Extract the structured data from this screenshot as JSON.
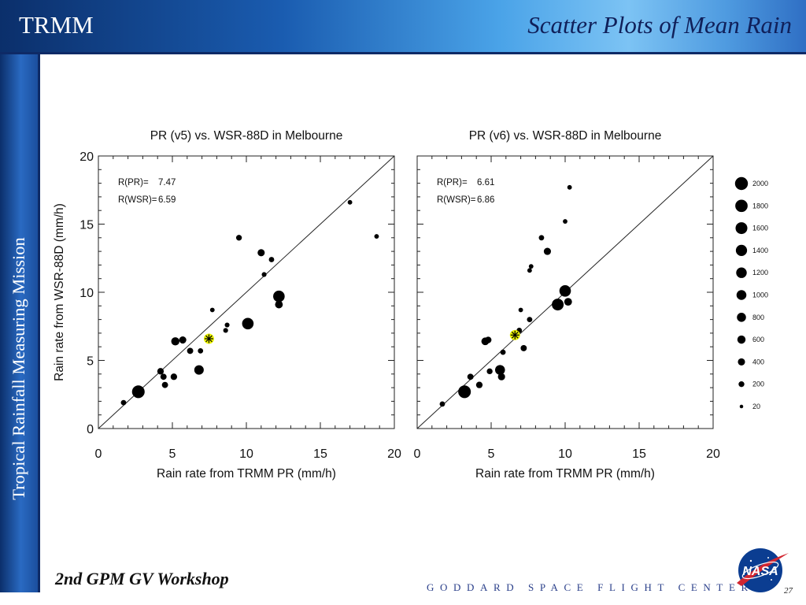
{
  "slide": {
    "brand": "TRMM",
    "title": "Scatter Plots of Mean Rain",
    "sidebar": "Tropical Rainfall Measuring Mission",
    "footer_left": "2nd GPM GV Workshop",
    "footer_center": "GODDARD SPACE FLIGHT CENTER",
    "page_number": "27",
    "logo_text": "NASA"
  },
  "chart_data": [
    {
      "type": "scatter",
      "title": "PR (v5) vs. WSR-88D in Melbourne",
      "xlabel": "Rain rate from TRMM PR (mm/h)",
      "ylabel": "Rain rate from WSR-88D (mm/h)",
      "xlim": [
        0,
        20
      ],
      "ylim": [
        0,
        20
      ],
      "xticks": [
        "0",
        "5",
        "10",
        "15",
        "20"
      ],
      "yticks": [
        "0",
        "5",
        "10",
        "15",
        "20"
      ],
      "diagonal": true,
      "annotations": [
        {
          "label": "R(PR)=",
          "value": "7.47"
        },
        {
          "label": "R(WSR)=",
          "value": "6.59"
        }
      ],
      "mean_marker": {
        "x": 7.47,
        "y": 6.59,
        "color": "#e8f000"
      },
      "points": [
        {
          "x": 1.7,
          "y": 1.9,
          "n": 150
        },
        {
          "x": 2.7,
          "y": 2.7,
          "n": 1900
        },
        {
          "x": 4.2,
          "y": 4.2,
          "n": 300
        },
        {
          "x": 4.4,
          "y": 3.8,
          "n": 250
        },
        {
          "x": 4.5,
          "y": 3.2,
          "n": 250
        },
        {
          "x": 5.1,
          "y": 3.8,
          "n": 300
        },
        {
          "x": 5.2,
          "y": 6.4,
          "n": 600
        },
        {
          "x": 5.7,
          "y": 6.5,
          "n": 400
        },
        {
          "x": 6.2,
          "y": 5.7,
          "n": 250
        },
        {
          "x": 6.8,
          "y": 4.3,
          "n": 900
        },
        {
          "x": 6.9,
          "y": 5.7,
          "n": 150
        },
        {
          "x": 7.7,
          "y": 8.7,
          "n": 80
        },
        {
          "x": 8.6,
          "y": 7.2,
          "n": 100
        },
        {
          "x": 8.7,
          "y": 7.6,
          "n": 100
        },
        {
          "x": 9.5,
          "y": 14.0,
          "n": 200
        },
        {
          "x": 10.1,
          "y": 7.7,
          "n": 1500
        },
        {
          "x": 11.0,
          "y": 12.9,
          "n": 400
        },
        {
          "x": 11.2,
          "y": 11.3,
          "n": 100
        },
        {
          "x": 11.7,
          "y": 12.4,
          "n": 150
        },
        {
          "x": 12.2,
          "y": 9.7,
          "n": 1500
        },
        {
          "x": 12.2,
          "y": 9.1,
          "n": 500
        },
        {
          "x": 17.0,
          "y": 16.6,
          "n": 80
        },
        {
          "x": 18.8,
          "y": 14.1,
          "n": 80
        }
      ]
    },
    {
      "type": "scatter",
      "title": "PR (v6) vs. WSR-88D in Melbourne",
      "xlabel": "Rain rate from TRMM PR (mm/h)",
      "ylabel": "",
      "xlim": [
        0,
        20
      ],
      "ylim": [
        0,
        20
      ],
      "xticks": [
        "0",
        "5",
        "10",
        "15",
        "20"
      ],
      "yticks": [],
      "diagonal": true,
      "annotations": [
        {
          "label": "R(PR)=",
          "value": "6.61"
        },
        {
          "label": "R(WSR)=",
          "value": "6.86"
        }
      ],
      "mean_marker": {
        "x": 6.61,
        "y": 6.86,
        "color": "#e8f000"
      },
      "points": [
        {
          "x": 1.7,
          "y": 1.8,
          "n": 150
        },
        {
          "x": 3.2,
          "y": 2.7,
          "n": 1900
        },
        {
          "x": 3.6,
          "y": 3.8,
          "n": 250
        },
        {
          "x": 4.2,
          "y": 3.2,
          "n": 300
        },
        {
          "x": 4.6,
          "y": 6.4,
          "n": 500
        },
        {
          "x": 4.8,
          "y": 6.5,
          "n": 300
        },
        {
          "x": 4.9,
          "y": 4.2,
          "n": 200
        },
        {
          "x": 5.6,
          "y": 4.3,
          "n": 1000
        },
        {
          "x": 5.7,
          "y": 3.8,
          "n": 400
        },
        {
          "x": 5.8,
          "y": 5.6,
          "n": 150
        },
        {
          "x": 6.9,
          "y": 7.2,
          "n": 150
        },
        {
          "x": 7.0,
          "y": 8.7,
          "n": 80
        },
        {
          "x": 7.2,
          "y": 5.9,
          "n": 250
        },
        {
          "x": 7.6,
          "y": 8.0,
          "n": 150
        },
        {
          "x": 7.6,
          "y": 11.6,
          "n": 80
        },
        {
          "x": 7.7,
          "y": 11.9,
          "n": 80
        },
        {
          "x": 8.4,
          "y": 14.0,
          "n": 150
        },
        {
          "x": 8.8,
          "y": 13.0,
          "n": 400
        },
        {
          "x": 9.5,
          "y": 9.1,
          "n": 1600
        },
        {
          "x": 10.0,
          "y": 10.1,
          "n": 1500
        },
        {
          "x": 10.0,
          "y": 15.2,
          "n": 80
        },
        {
          "x": 10.2,
          "y": 9.3,
          "n": 500
        },
        {
          "x": 10.3,
          "y": 17.7,
          "n": 80
        }
      ]
    }
  ],
  "size_legend": {
    "labels": [
      "2000",
      "1800",
      "1600",
      "1400",
      "1200",
      "1000",
      "800",
      "600",
      "400",
      "200",
      "20"
    ],
    "values": [
      2000,
      1800,
      1600,
      1400,
      1200,
      1000,
      800,
      600,
      400,
      200,
      20
    ]
  }
}
